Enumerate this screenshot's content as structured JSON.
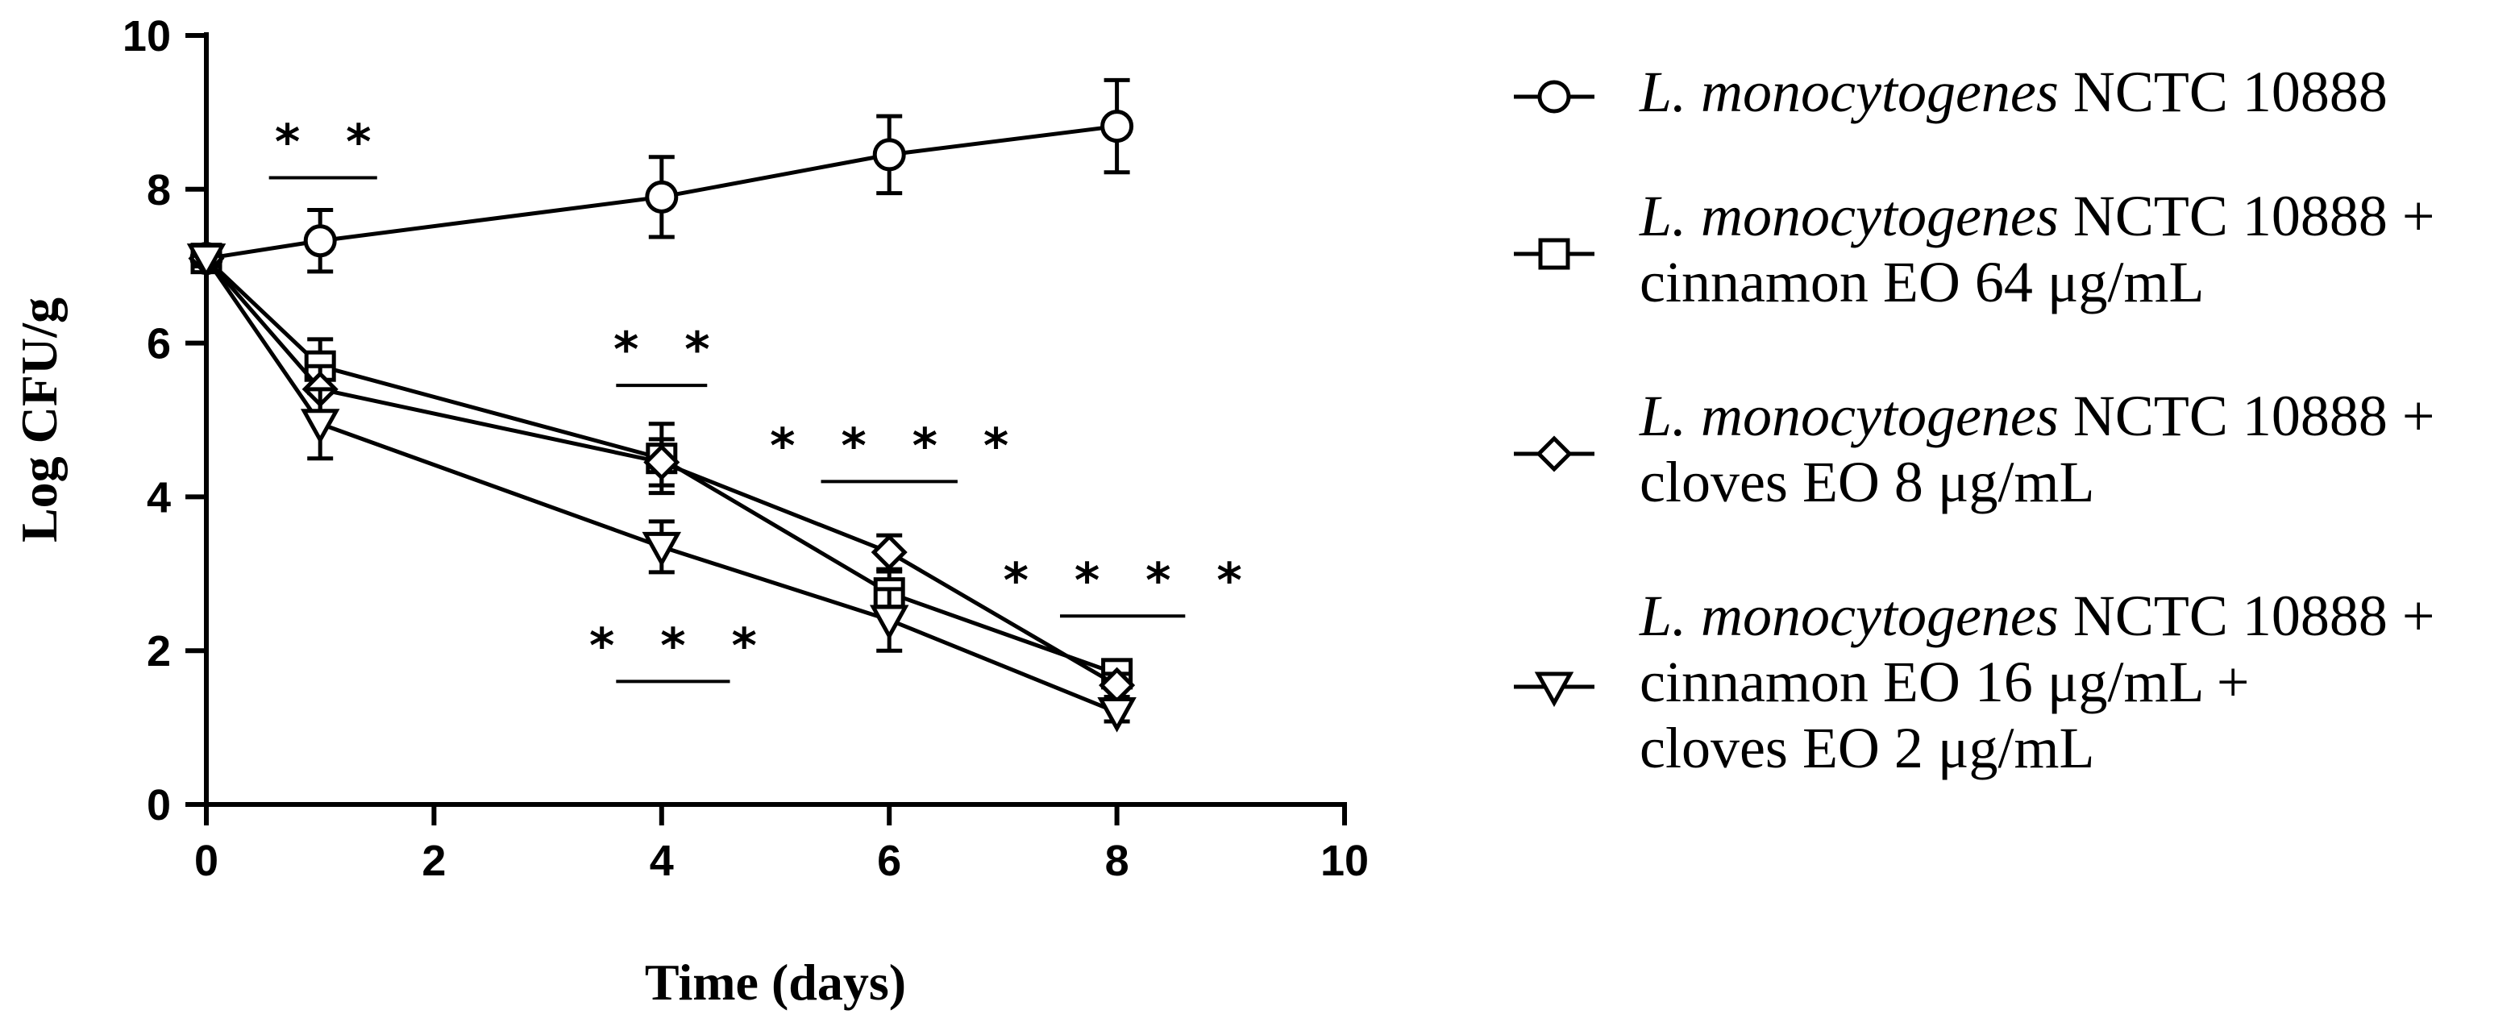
{
  "chart_data": {
    "type": "line",
    "title": "",
    "xlabel": "Time (days)",
    "ylabel": "Log CFU/g",
    "xlim": [
      0,
      10
    ],
    "ylim": [
      0,
      10
    ],
    "x_ticks": [
      0,
      2,
      4,
      6,
      8,
      10
    ],
    "y_ticks": [
      0,
      2,
      4,
      6,
      8,
      10
    ],
    "x_tick_labels": [
      "0",
      "2",
      "4",
      "6",
      "8",
      "10"
    ],
    "y_tick_labels": [
      "0",
      "2",
      "4",
      "6",
      "8",
      "10"
    ],
    "grid": false,
    "legend_position": "right",
    "series": [
      {
        "name": "L. monocytogenes NCTC 10888",
        "legend_lines": [
          [
            {
              "text": "L. monocytogenes",
              "italic": true
            },
            {
              "text": " NCTC 10888",
              "italic": false
            }
          ]
        ],
        "marker": "circle",
        "x": [
          0,
          1,
          4,
          6,
          8
        ],
        "y": [
          7.1,
          7.33,
          7.9,
          8.45,
          8.82
        ],
        "err": [
          0.1,
          0.4,
          0.52,
          0.5,
          0.6
        ]
      },
      {
        "name": "L. monocytogenes NCTC 10888 + cinnamon EO 64 μg/mL",
        "legend_lines": [
          [
            {
              "text": "L. monocytogenes",
              "italic": true
            },
            {
              "text": " NCTC 10888 +",
              "italic": false
            }
          ],
          [
            {
              "text": "cinnamon EO 64 μg/mL",
              "italic": false
            }
          ]
        ],
        "marker": "square",
        "x": [
          0,
          1,
          4,
          6,
          8
        ],
        "y": [
          7.1,
          5.7,
          4.5,
          2.75,
          1.7
        ],
        "err": [
          0.1,
          0.35,
          0.45,
          0.28,
          0.15
        ]
      },
      {
        "name": "L. monocytogenes NCTC 10888 + cloves EO 8 μg/mL",
        "legend_lines": [
          [
            {
              "text": "L. monocytogenes",
              "italic": true
            },
            {
              "text": " NCTC 10888 +",
              "italic": false
            }
          ],
          [
            {
              "text": "cloves EO 8 μg/mL",
              "italic": false
            }
          ]
        ],
        "marker": "diamond",
        "x": [
          0,
          1,
          4,
          6,
          8
        ],
        "y": [
          7.1,
          5.4,
          4.45,
          3.28,
          1.55
        ],
        "err": [
          0.1,
          0.3,
          0.3,
          0.22,
          0.15
        ]
      },
      {
        "name": "L. monocytogenes NCTC 10888 + cinnamon EO 16 μg/mL + cloves EO 2 μg/mL",
        "legend_lines": [
          [
            {
              "text": "L. monocytogenes",
              "italic": true
            },
            {
              "text": " NCTC 10888 +",
              "italic": false
            }
          ],
          [
            {
              "text": "cinnamon EO 16 μg/mL +",
              "italic": false
            }
          ],
          [
            {
              "text": "cloves EO 2 μg/mL",
              "italic": false
            }
          ]
        ],
        "marker": "triangle-down",
        "x": [
          0,
          1,
          4,
          6,
          8
        ],
        "y": [
          7.1,
          4.95,
          3.35,
          2.4,
          1.2
        ],
        "err": [
          0.1,
          0.45,
          0.33,
          0.4,
          0.12
        ]
      }
    ],
    "annotations": [
      {
        "text": "* *",
        "x_from": 0.55,
        "x_to": 1.5,
        "line_y": 8.15,
        "label_pos": "above"
      },
      {
        "text": "* *",
        "x_from": 3.6,
        "x_to": 4.4,
        "line_y": 5.45,
        "label_pos": "above"
      },
      {
        "text": "* * *",
        "x_from": 3.6,
        "x_to": 4.6,
        "line_y": 1.6,
        "label_pos": "above"
      },
      {
        "text": "* * * *",
        "x_from": 5.4,
        "x_to": 6.6,
        "line_y": 4.2,
        "label_pos": "above"
      },
      {
        "text": "* * * *",
        "x_from": 7.5,
        "x_to": 8.6,
        "line_y": 2.45,
        "label_pos": "above"
      }
    ]
  }
}
